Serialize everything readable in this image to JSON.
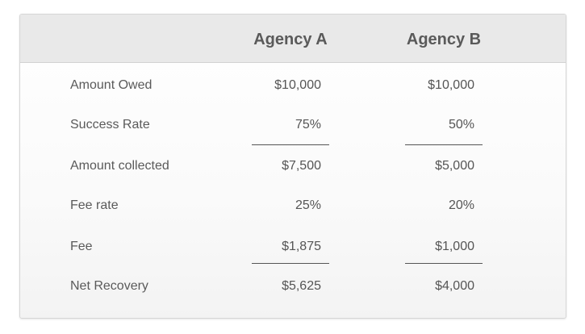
{
  "columns": {
    "a": "Agency A",
    "b": "Agency B"
  },
  "rows": [
    {
      "label": "Amount Owed",
      "a": "$10,000",
      "b": "$10,000"
    },
    {
      "label": "Success Rate",
      "a": "75%",
      "b": "50%"
    },
    {
      "label": "Amount collected",
      "a": "$7,500",
      "b": "$5,000"
    },
    {
      "label": "Fee rate",
      "a": "25%",
      "b": "20%"
    },
    {
      "label": "Fee",
      "a": "$1,875",
      "b": "$1,000"
    },
    {
      "label": "Net Recovery",
      "a": "$5,625",
      "b": "$4,000"
    }
  ]
}
